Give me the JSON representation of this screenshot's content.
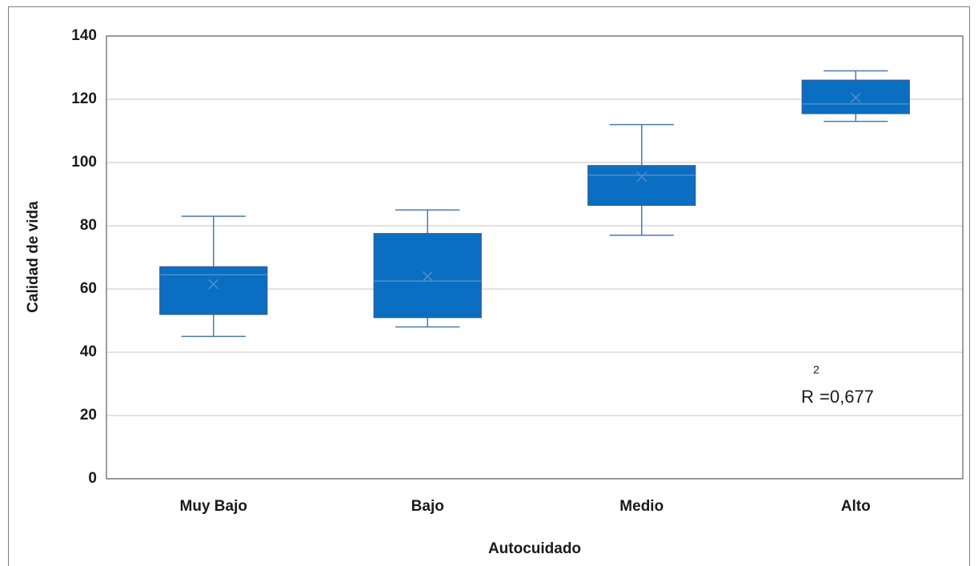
{
  "chart_data": {
    "type": "box",
    "x_label": "Autocuidado",
    "y_label": "Calidad de vida",
    "categories": [
      "Muy Bajo",
      "Bajo",
      "Medio",
      "Alto"
    ],
    "min": [
      45,
      48,
      77,
      113
    ],
    "q1": [
      52,
      51,
      86.5,
      115.5
    ],
    "median": [
      64.5,
      62.5,
      96,
      118.5
    ],
    "q3": [
      67,
      77.5,
      99,
      126
    ],
    "max": [
      83,
      85,
      112,
      129
    ],
    "mean": [
      61.5,
      64,
      95.5,
      120.5
    ],
    "color": "#0a6fc2",
    "ylim": [
      0,
      140
    ],
    "yticks": [
      0,
      20,
      40,
      60,
      80,
      100,
      120,
      140
    ],
    "grid": true,
    "annotation": {
      "base": "R",
      "sup": "2",
      "rest": "=0,677"
    }
  }
}
